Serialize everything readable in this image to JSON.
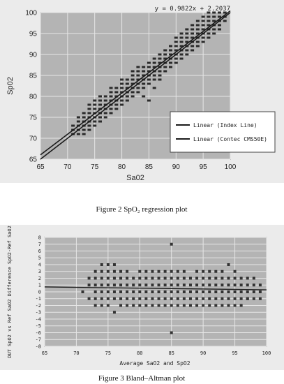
{
  "chart_data": [
    {
      "type": "scatter",
      "title": "",
      "xlabel": "Sa02",
      "ylabel": "Sp02",
      "xlim": [
        65,
        100
      ],
      "ylim": [
        65,
        100
      ],
      "x_ticks": [
        "65",
        "70",
        "75",
        "80",
        "85",
        "90",
        "95",
        "100"
      ],
      "y_ticks": [
        "65",
        "70",
        "75",
        "80",
        "85",
        "90",
        "95",
        "100"
      ],
      "grid": true,
      "equation": "y = 0.9822x + 2.2037",
      "legend_position": "bottom-right",
      "legend": [
        "Linear (Index Line)",
        "Linear (Contec CMS50E)"
      ],
      "lines": [
        {
          "name": "Linear (Index Line)",
          "slope": 1,
          "intercept": 0
        },
        {
          "name": "Linear (Contec CMS50E)",
          "slope": 0.9822,
          "intercept": 2.2037
        }
      ],
      "colors": {
        "plot_bg": "#b4b4b4",
        "grid": "#e6e6e6",
        "points": "#2b2b2b",
        "line": "#1a1a1a"
      },
      "points": [
        [
          71,
          72
        ],
        [
          71,
          73
        ],
        [
          71,
          71
        ],
        [
          72,
          73
        ],
        [
          72,
          74
        ],
        [
          72,
          72
        ],
        [
          72,
          71
        ],
        [
          72,
          75
        ],
        [
          73,
          74
        ],
        [
          73,
          73
        ],
        [
          73,
          75
        ],
        [
          73,
          72
        ],
        [
          73,
          76
        ],
        [
          73,
          71
        ],
        [
          74,
          75
        ],
        [
          74,
          74
        ],
        [
          74,
          76
        ],
        [
          74,
          73
        ],
        [
          74,
          77
        ],
        [
          74,
          72
        ],
        [
          74,
          78
        ],
        [
          75,
          76
        ],
        [
          75,
          75
        ],
        [
          75,
          77
        ],
        [
          75,
          74
        ],
        [
          75,
          78
        ],
        [
          75,
          73
        ],
        [
          75,
          79
        ],
        [
          76,
          77
        ],
        [
          76,
          76
        ],
        [
          76,
          78
        ],
        [
          76,
          75
        ],
        [
          76,
          79
        ],
        [
          76,
          74
        ],
        [
          76,
          80
        ],
        [
          77,
          78
        ],
        [
          77,
          77
        ],
        [
          77,
          79
        ],
        [
          77,
          76
        ],
        [
          77,
          80
        ],
        [
          77,
          75
        ],
        [
          78,
          79
        ],
        [
          78,
          78
        ],
        [
          78,
          80
        ],
        [
          78,
          77
        ],
        [
          78,
          81
        ],
        [
          78,
          76
        ],
        [
          78,
          82
        ],
        [
          79,
          80
        ],
        [
          79,
          79
        ],
        [
          79,
          81
        ],
        [
          79,
          78
        ],
        [
          79,
          82
        ],
        [
          79,
          77
        ],
        [
          80,
          81
        ],
        [
          80,
          80
        ],
        [
          80,
          82
        ],
        [
          80,
          79
        ],
        [
          80,
          83
        ],
        [
          80,
          78
        ],
        [
          80,
          84
        ],
        [
          81,
          82
        ],
        [
          81,
          81
        ],
        [
          81,
          83
        ],
        [
          81,
          80
        ],
        [
          81,
          84
        ],
        [
          81,
          79
        ],
        [
          82,
          83
        ],
        [
          82,
          82
        ],
        [
          82,
          84
        ],
        [
          82,
          81
        ],
        [
          82,
          85
        ],
        [
          82,
          80
        ],
        [
          82,
          86
        ],
        [
          83,
          84
        ],
        [
          83,
          83
        ],
        [
          83,
          85
        ],
        [
          83,
          82
        ],
        [
          83,
          86
        ],
        [
          83,
          81
        ],
        [
          83,
          87
        ],
        [
          84,
          85
        ],
        [
          84,
          84
        ],
        [
          84,
          86
        ],
        [
          84,
          83
        ],
        [
          84,
          87
        ],
        [
          84,
          82
        ],
        [
          84,
          80
        ],
        [
          85,
          86
        ],
        [
          85,
          85
        ],
        [
          85,
          87
        ],
        [
          85,
          84
        ],
        [
          85,
          88
        ],
        [
          85,
          83
        ],
        [
          85,
          79
        ],
        [
          86,
          87
        ],
        [
          86,
          86
        ],
        [
          86,
          88
        ],
        [
          86,
          85
        ],
        [
          86,
          89
        ],
        [
          86,
          84
        ],
        [
          86,
          82
        ],
        [
          87,
          88
        ],
        [
          87,
          87
        ],
        [
          87,
          89
        ],
        [
          87,
          86
        ],
        [
          87,
          90
        ],
        [
          87,
          85
        ],
        [
          87,
          84
        ],
        [
          88,
          89
        ],
        [
          88,
          88
        ],
        [
          88,
          90
        ],
        [
          88,
          87
        ],
        [
          88,
          91
        ],
        [
          88,
          86
        ],
        [
          89,
          90
        ],
        [
          89,
          89
        ],
        [
          89,
          91
        ],
        [
          89,
          88
        ],
        [
          89,
          92
        ],
        [
          89,
          87
        ],
        [
          90,
          91
        ],
        [
          90,
          90
        ],
        [
          90,
          92
        ],
        [
          90,
          89
        ],
        [
          90,
          93
        ],
        [
          90,
          88
        ],
        [
          90,
          94
        ],
        [
          91,
          92
        ],
        [
          91,
          91
        ],
        [
          91,
          93
        ],
        [
          91,
          90
        ],
        [
          91,
          94
        ],
        [
          91,
          89
        ],
        [
          91,
          95
        ],
        [
          92,
          93
        ],
        [
          92,
          92
        ],
        [
          92,
          94
        ],
        [
          92,
          91
        ],
        [
          92,
          95
        ],
        [
          92,
          90
        ],
        [
          92,
          96
        ],
        [
          93,
          94
        ],
        [
          93,
          93
        ],
        [
          93,
          95
        ],
        [
          93,
          92
        ],
        [
          93,
          96
        ],
        [
          93,
          91
        ],
        [
          93,
          97
        ],
        [
          94,
          95
        ],
        [
          94,
          94
        ],
        [
          94,
          96
        ],
        [
          94,
          93
        ],
        [
          94,
          97
        ],
        [
          94,
          92
        ],
        [
          94,
          98
        ],
        [
          95,
          96
        ],
        [
          95,
          95
        ],
        [
          95,
          97
        ],
        [
          95,
          94
        ],
        [
          95,
          98
        ],
        [
          95,
          93
        ],
        [
          95,
          99
        ],
        [
          96,
          97
        ],
        [
          96,
          96
        ],
        [
          96,
          98
        ],
        [
          96,
          95
        ],
        [
          96,
          99
        ],
        [
          96,
          94
        ],
        [
          96,
          100
        ],
        [
          97,
          98
        ],
        [
          97,
          97
        ],
        [
          97,
          99
        ],
        [
          97,
          96
        ],
        [
          97,
          100
        ],
        [
          97,
          95
        ],
        [
          98,
          99
        ],
        [
          98,
          98
        ],
        [
          98,
          100
        ],
        [
          98,
          97
        ],
        [
          98,
          96
        ],
        [
          99,
          99
        ],
        [
          99,
          100
        ],
        [
          99,
          98
        ]
      ]
    },
    {
      "type": "scatter",
      "title": "",
      "xlabel": "Average SaO2 and SpO2",
      "ylabel": "DUT SpO2 vs Ref SaO2 Difference SpO2-Ref SaO2",
      "xlim": [
        65,
        100
      ],
      "ylim": [
        -8,
        8
      ],
      "x_ticks": [
        "65",
        "70",
        "75",
        "80",
        "85",
        "90",
        "95",
        "100"
      ],
      "y_ticks": [
        "8",
        "7",
        "6",
        "5",
        "4",
        "3",
        "2",
        "1",
        "0",
        "-1",
        "-2",
        "-3",
        "-4",
        "-5",
        "-6",
        "-7",
        "-8"
      ],
      "grid": true,
      "trend_line": {
        "slope": -0.012,
        "intercept": 1.5
      },
      "colors": {
        "plot_bg": "#b4b4b4",
        "grid": "#e6e6e6",
        "points": "#333333",
        "line": "#1a1a1a"
      },
      "points": [
        [
          71,
          0
        ],
        [
          72,
          1
        ],
        [
          72,
          -1
        ],
        [
          72,
          2
        ],
        [
          73,
          0
        ],
        [
          73,
          1
        ],
        [
          73,
          -1
        ],
        [
          73,
          2
        ],
        [
          73,
          3
        ],
        [
          73,
          -2
        ],
        [
          74,
          0
        ],
        [
          74,
          1
        ],
        [
          74,
          2
        ],
        [
          74,
          -1
        ],
        [
          74,
          3
        ],
        [
          74,
          -2
        ],
        [
          74,
          4
        ],
        [
          75,
          0
        ],
        [
          75,
          1
        ],
        [
          75,
          -1
        ],
        [
          75,
          2
        ],
        [
          75,
          3
        ],
        [
          75,
          -2
        ],
        [
          75,
          4
        ],
        [
          76,
          0
        ],
        [
          76,
          1
        ],
        [
          76,
          -1
        ],
        [
          76,
          2
        ],
        [
          76,
          -3
        ],
        [
          76,
          3
        ],
        [
          76,
          4
        ],
        [
          77,
          0
        ],
        [
          77,
          1
        ],
        [
          77,
          -1
        ],
        [
          77,
          2
        ],
        [
          77,
          3
        ],
        [
          77,
          -2
        ],
        [
          78,
          0
        ],
        [
          78,
          1
        ],
        [
          78,
          -1
        ],
        [
          78,
          2
        ],
        [
          78,
          -2
        ],
        [
          78,
          3
        ],
        [
          79,
          0
        ],
        [
          79,
          1
        ],
        [
          79,
          -1
        ],
        [
          79,
          2
        ],
        [
          79,
          -2
        ],
        [
          80,
          0
        ],
        [
          80,
          1
        ],
        [
          80,
          -1
        ],
        [
          80,
          2
        ],
        [
          80,
          3
        ],
        [
          80,
          -2
        ],
        [
          81,
          0
        ],
        [
          81,
          1
        ],
        [
          81,
          -1
        ],
        [
          81,
          2
        ],
        [
          81,
          -2
        ],
        [
          81,
          3
        ],
        [
          82,
          0
        ],
        [
          82,
          1
        ],
        [
          82,
          -1
        ],
        [
          82,
          2
        ],
        [
          82,
          3
        ],
        [
          82,
          -2
        ],
        [
          83,
          0
        ],
        [
          83,
          1
        ],
        [
          83,
          -1
        ],
        [
          83,
          2
        ],
        [
          83,
          3
        ],
        [
          83,
          -2
        ],
        [
          84,
          0
        ],
        [
          84,
          1
        ],
        [
          84,
          -1
        ],
        [
          84,
          2
        ],
        [
          84,
          3
        ],
        [
          84,
          -2
        ],
        [
          85,
          7
        ],
        [
          85,
          0
        ],
        [
          85,
          1
        ],
        [
          85,
          -1
        ],
        [
          85,
          2
        ],
        [
          85,
          -6
        ],
        [
          85,
          3
        ],
        [
          85,
          -2
        ],
        [
          86,
          0
        ],
        [
          86,
          1
        ],
        [
          86,
          -1
        ],
        [
          86,
          2
        ],
        [
          86,
          -2
        ],
        [
          86,
          3
        ],
        [
          87,
          0
        ],
        [
          87,
          1
        ],
        [
          87,
          -1
        ],
        [
          87,
          2
        ],
        [
          87,
          3
        ],
        [
          87,
          -2
        ],
        [
          88,
          0
        ],
        [
          88,
          1
        ],
        [
          88,
          -1
        ],
        [
          88,
          2
        ],
        [
          88,
          -2
        ],
        [
          89,
          0
        ],
        [
          89,
          1
        ],
        [
          89,
          -1
        ],
        [
          89,
          2
        ],
        [
          89,
          3
        ],
        [
          89,
          -2
        ],
        [
          90,
          0
        ],
        [
          90,
          1
        ],
        [
          90,
          -1
        ],
        [
          90,
          2
        ],
        [
          90,
          3
        ],
        [
          90,
          -2
        ],
        [
          91,
          0
        ],
        [
          91,
          1
        ],
        [
          91,
          -1
        ],
        [
          91,
          2
        ],
        [
          91,
          3
        ],
        [
          91,
          -2
        ],
        [
          92,
          0
        ],
        [
          92,
          1
        ],
        [
          92,
          -1
        ],
        [
          92,
          2
        ],
        [
          92,
          -2
        ],
        [
          92,
          3
        ],
        [
          93,
          0
        ],
        [
          93,
          1
        ],
        [
          93,
          -1
        ],
        [
          93,
          2
        ],
        [
          93,
          3
        ],
        [
          93,
          -2
        ],
        [
          94,
          0
        ],
        [
          94,
          1
        ],
        [
          94,
          -1
        ],
        [
          94,
          4
        ],
        [
          94,
          2
        ],
        [
          94,
          -2
        ],
        [
          95,
          0
        ],
        [
          95,
          1
        ],
        [
          95,
          -1
        ],
        [
          95,
          2
        ],
        [
          95,
          3
        ],
        [
          95,
          -2
        ],
        [
          96,
          0
        ],
        [
          96,
          1
        ],
        [
          96,
          -1
        ],
        [
          96,
          2
        ],
        [
          96,
          -2
        ],
        [
          97,
          0
        ],
        [
          97,
          1
        ],
        [
          97,
          -1
        ],
        [
          97,
          2
        ],
        [
          97,
          -1
        ],
        [
          98,
          0
        ],
        [
          98,
          1
        ],
        [
          98,
          -1
        ],
        [
          98,
          2
        ],
        [
          99,
          0
        ],
        [
          99,
          1
        ],
        [
          99,
          -1
        ]
      ]
    }
  ],
  "captions": {
    "fig2": "Figure 2    SpO₂ regression plot",
    "fig3": "Figure 3    Bland–Altman plot"
  }
}
